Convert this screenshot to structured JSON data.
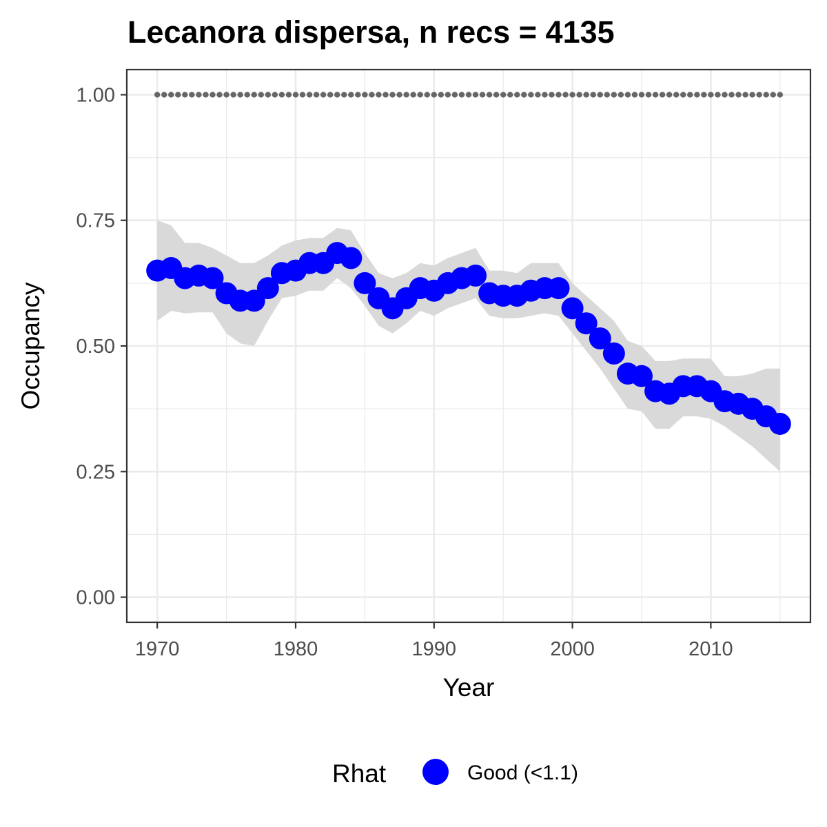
{
  "chart_data": {
    "type": "scatter",
    "title": "Lecanora dispersa, n recs = 4135",
    "xlabel": "Year",
    "ylabel": "Occupancy",
    "xlim": [
      1967.8,
      2017.2
    ],
    "ylim": [
      -0.05,
      1.05
    ],
    "x_ticks": [
      1970,
      1980,
      1990,
      2000,
      2010
    ],
    "x_tick_labels": [
      "1970",
      "1980",
      "1990",
      "2000",
      "2010"
    ],
    "y_ticks": [
      0,
      0.25,
      0.5,
      0.75,
      1
    ],
    "y_tick_labels": [
      "0.00",
      "0.25",
      "0.50",
      "0.75",
      "1.00"
    ],
    "grid": true,
    "legend": {
      "title": "Rhat",
      "position": "bottom",
      "entries": [
        {
          "label": "Good (<1.1)",
          "color": "#0000ff"
        }
      ]
    },
    "colors": {
      "points": "#0000ff",
      "ribbon": "#d9d9d9",
      "reference": "#666666",
      "grid": "#ebebeb",
      "panel_border": "#333333"
    },
    "x": [
      1970,
      1971,
      1972,
      1973,
      1974,
      1975,
      1976,
      1977,
      1978,
      1979,
      1980,
      1981,
      1982,
      1983,
      1984,
      1985,
      1986,
      1987,
      1988,
      1989,
      1990,
      1991,
      1992,
      1993,
      1994,
      1995,
      1996,
      1997,
      1998,
      1999,
      2000,
      2001,
      2002,
      2003,
      2004,
      2005,
      2006,
      2007,
      2008,
      2009,
      2010,
      2011,
      2012,
      2013,
      2014,
      2015
    ],
    "series": [
      {
        "name": "Good (<1.1)",
        "values": [
          0.65,
          0.655,
          0.635,
          0.64,
          0.635,
          0.605,
          0.59,
          0.59,
          0.615,
          0.645,
          0.65,
          0.665,
          0.665,
          0.685,
          0.675,
          0.625,
          0.595,
          0.575,
          0.595,
          0.615,
          0.61,
          0.625,
          0.635,
          0.64,
          0.605,
          0.6,
          0.6,
          0.61,
          0.615,
          0.615,
          0.575,
          0.545,
          0.515,
          0.485,
          0.445,
          0.44,
          0.41,
          0.405,
          0.42,
          0.42,
          0.41,
          0.39,
          0.385,
          0.375,
          0.36,
          0.345
        ],
        "lower": [
          0.55,
          0.57,
          0.565,
          0.567,
          0.567,
          0.525,
          0.505,
          0.5,
          0.55,
          0.595,
          0.6,
          0.61,
          0.61,
          0.635,
          0.615,
          0.58,
          0.54,
          0.525,
          0.545,
          0.57,
          0.56,
          0.575,
          0.585,
          0.595,
          0.56,
          0.555,
          0.555,
          0.56,
          0.565,
          0.56,
          0.525,
          0.49,
          0.455,
          0.415,
          0.375,
          0.37,
          0.335,
          0.335,
          0.36,
          0.36,
          0.355,
          0.34,
          0.32,
          0.3,
          0.275,
          0.25
        ],
        "upper": [
          0.75,
          0.74,
          0.705,
          0.705,
          0.695,
          0.68,
          0.665,
          0.665,
          0.68,
          0.7,
          0.71,
          0.715,
          0.715,
          0.735,
          0.73,
          0.685,
          0.645,
          0.635,
          0.645,
          0.665,
          0.66,
          0.675,
          0.685,
          0.695,
          0.65,
          0.65,
          0.645,
          0.665,
          0.665,
          0.665,
          0.625,
          0.6,
          0.575,
          0.55,
          0.51,
          0.5,
          0.47,
          0.47,
          0.475,
          0.475,
          0.475,
          0.44,
          0.44,
          0.445,
          0.455,
          0.455
        ]
      }
    ],
    "reference_line": {
      "y": 1.0,
      "x_from": 1970,
      "x_to": 2015
    }
  }
}
